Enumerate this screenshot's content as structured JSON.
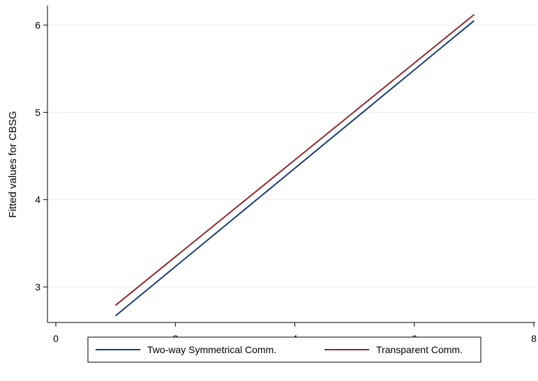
{
  "chart_data": {
    "type": "line",
    "title": "",
    "xlabel": "",
    "ylabel": "Fitted values for CBSG",
    "xlim": [
      0,
      8
    ],
    "ylim": [
      2.6,
      6.2
    ],
    "x_ticks": [
      0,
      2,
      4,
      6,
      8
    ],
    "y_ticks": [
      3,
      4,
      5,
      6
    ],
    "grid": "horizontal",
    "legend_position": "bottom",
    "series": [
      {
        "name": "Two-way Symmetrical Comm.",
        "color": "#1a3d6b",
        "x": [
          1,
          7
        ],
        "y": [
          2.67,
          6.05
        ]
      },
      {
        "name": "Transparent Comm.",
        "color": "#8b2a2e",
        "x": [
          1,
          7
        ],
        "y": [
          2.79,
          6.12
        ]
      }
    ]
  }
}
